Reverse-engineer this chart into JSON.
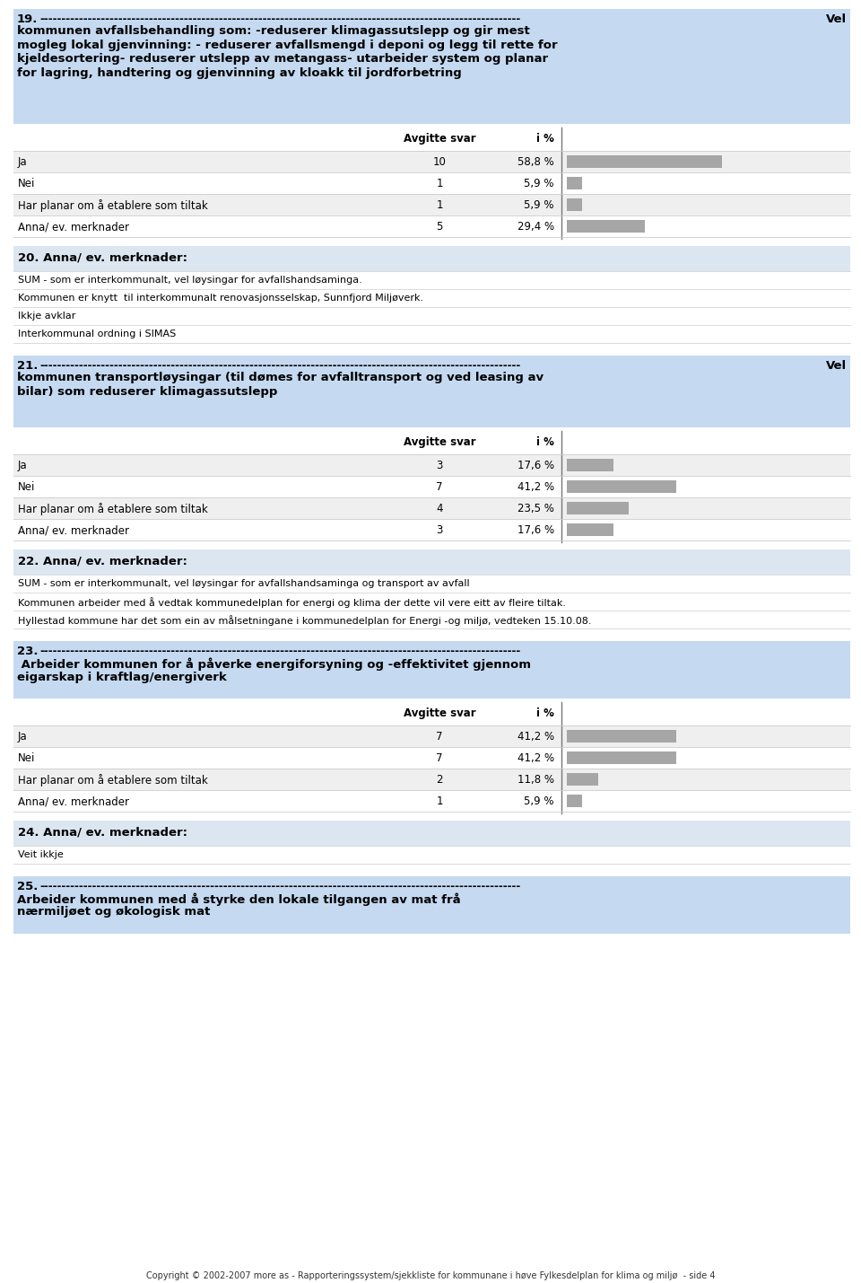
{
  "page_bg": "#ffffff",
  "header_bg": "#c5d9f1",
  "section_bg": "#dce6f1",
  "row_bg_alt": "#efefef",
  "bar_color": "#a6a6a6",
  "section19": {
    "number": "19.",
    "has_vel": true,
    "title_line1": "kommunen avfallsbehandling som: -reduserer klimagassutslepp og gir mest",
    "title_line2": "mogleg lokal gjenvinning: - reduserer avfallsmengd i deponi og legg til rette for",
    "title_line3": "kjeldesortering- reduserer utslepp av metangass- utarbeider system og planar",
    "title_line4": "for lagring, handtering og gjenvinning av kloakk til jordforbetring",
    "rows": [
      {
        "label": "Ja",
        "count": "10",
        "pct": "58,8 %",
        "val": 58.8
      },
      {
        "label": "Nei",
        "count": "1",
        "pct": "5,9 %",
        "val": 5.9
      },
      {
        "label": "Har planar om å etablere som tiltak",
        "count": "1",
        "pct": "5,9 %",
        "val": 5.9
      },
      {
        "label": "Anna/ ev. merknader",
        "count": "5",
        "pct": "29,4 %",
        "val": 29.4
      }
    ]
  },
  "section20": {
    "title": "20. Anna/ ev. merknader:",
    "lines": [
      "SUM - som er interkommunalt, vel løysingar for avfallshandsaminga.",
      "Kommunen er knytt  til interkommunalt renovasjonsselskap, Sunnfjord Miljøverk.",
      "Ikkje avklar",
      "Interkommunal ordning i SIMAS"
    ]
  },
  "section21": {
    "number": "21.",
    "has_vel": true,
    "title_line1": "kommunen transportløysingar (til dømes for avfalltransport og ved leasing av",
    "title_line2": "bilar) som reduserer klimagassutslepp",
    "title_line3": "",
    "title_line4": "",
    "rows": [
      {
        "label": "Ja",
        "count": "3",
        "pct": "17,6 %",
        "val": 17.6
      },
      {
        "label": "Nei",
        "count": "7",
        "pct": "41,2 %",
        "val": 41.2
      },
      {
        "label": "Har planar om å etablere som tiltak",
        "count": "4",
        "pct": "23,5 %",
        "val": 23.5
      },
      {
        "label": "Anna/ ev. merknader",
        "count": "3",
        "pct": "17,6 %",
        "val": 17.6
      }
    ]
  },
  "section22": {
    "title": "22. Anna/ ev. merknader:",
    "lines": [
      "SUM - som er interkommunalt, vel løysingar for avfallshandsaminga og transport av avfall",
      "Kommunen arbeider med å vedtak kommunedelplan for energi og klima der dette vil vere eitt av fleire tiltak.",
      "Hyllestad kommune har det som ein av målsetningane i kommunedelplan for Energi -og miljø, vedteken 15.10.08."
    ]
  },
  "section23": {
    "number": "23.",
    "has_vel": false,
    "title_line1": " Arbeider kommunen for å påverke energiforsyning og -effektivitet gjennom",
    "title_line2": "eigarskap i kraftlag/energiverk",
    "title_line3": "",
    "title_line4": "",
    "rows": [
      {
        "label": "Ja",
        "count": "7",
        "pct": "41,2 %",
        "val": 41.2
      },
      {
        "label": "Nei",
        "count": "7",
        "pct": "41,2 %",
        "val": 41.2
      },
      {
        "label": "Har planar om å etablere som tiltak",
        "count": "2",
        "pct": "11,8 %",
        "val": 11.8
      },
      {
        "label": "Anna/ ev. merknader",
        "count": "1",
        "pct": "5,9 %",
        "val": 5.9
      }
    ]
  },
  "section24": {
    "title": "24. Anna/ ev. merknader:",
    "lines": [
      "Veit ikkje"
    ]
  },
  "section25": {
    "number": "25.",
    "has_vel": false,
    "title_line1": "Arbeider kommunen med å styrke den lokale tilgangen av mat frå",
    "title_line2": "nærmiljøet og økologisk mat",
    "title_line3": "",
    "title_line4": ""
  },
  "footer": "Copyright © 2002-2007 more as - Rapporteringssystem/sjekkliste for kommunane i høve Fylkesdelplan for klima og miljø  - side 4"
}
